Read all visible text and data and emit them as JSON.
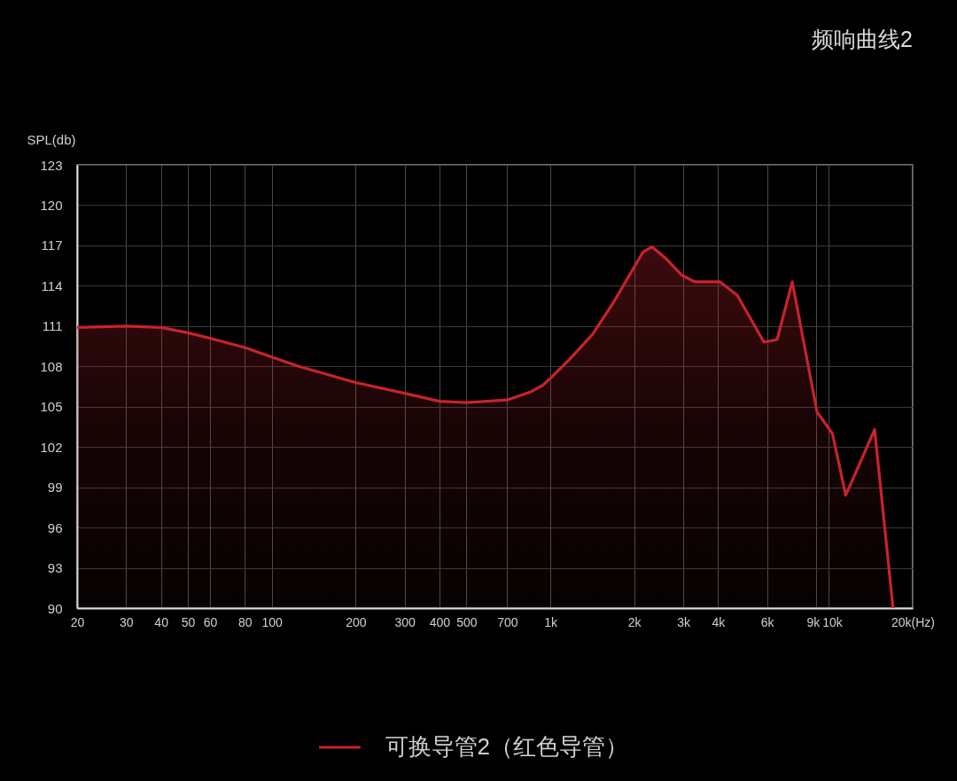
{
  "chart_data": {
    "type": "area",
    "title": "频响曲线2",
    "ylabel": "SPL(db)",
    "x": [
      20,
      30,
      40,
      50,
      60,
      80,
      100,
      125,
      200,
      300,
      400,
      500,
      700,
      850,
      940,
      1000,
      1170,
      1420,
      1690,
      2150,
      2320,
      2610,
      2960,
      3300,
      4060,
      4690,
      5850,
      6520,
      7390,
      9070,
      10300,
      11500,
      14600,
      17000
    ],
    "series": [
      {
        "name": "可换导管2（红色导管）",
        "color": "#c8232c",
        "values": [
          110.9,
          111.0,
          110.9,
          110.5,
          110.1,
          109.4,
          108.7,
          108.0,
          106.8,
          106.0,
          105.4,
          105.3,
          105.5,
          106.1,
          106.6,
          107.1,
          108.5,
          110.4,
          112.8,
          116.5,
          116.9,
          116.0,
          114.8,
          114.3,
          114.3,
          113.3,
          109.8,
          110.0,
          114.3,
          104.6,
          103.0,
          98.4,
          103.3,
          90.0
        ]
      }
    ],
    "log": "x",
    "xlim": [
      20,
      20000
    ],
    "xticks": [
      20,
      30,
      40,
      50,
      60,
      80,
      100,
      200,
      300,
      400,
      500,
      700,
      {
        "value": 1000,
        "label": "1k"
      },
      {
        "value": 2000,
        "label": "2k"
      },
      {
        "value": 3000,
        "label": "3k"
      },
      {
        "value": 4000,
        "label": "4k"
      },
      {
        "value": 6000,
        "label": "6k"
      },
      {
        "value": 9000,
        "label": "9k"
      },
      {
        "value": 10000,
        "label": "10k"
      },
      {
        "value": 20000,
        "label": "20k(Hz)"
      }
    ],
    "ylim": [
      90,
      123
    ],
    "yticks": [
      90,
      93,
      96,
      99,
      102,
      105,
      108,
      111,
      114,
      117,
      120,
      123
    ],
    "grid": true,
    "legend": "bottom"
  }
}
